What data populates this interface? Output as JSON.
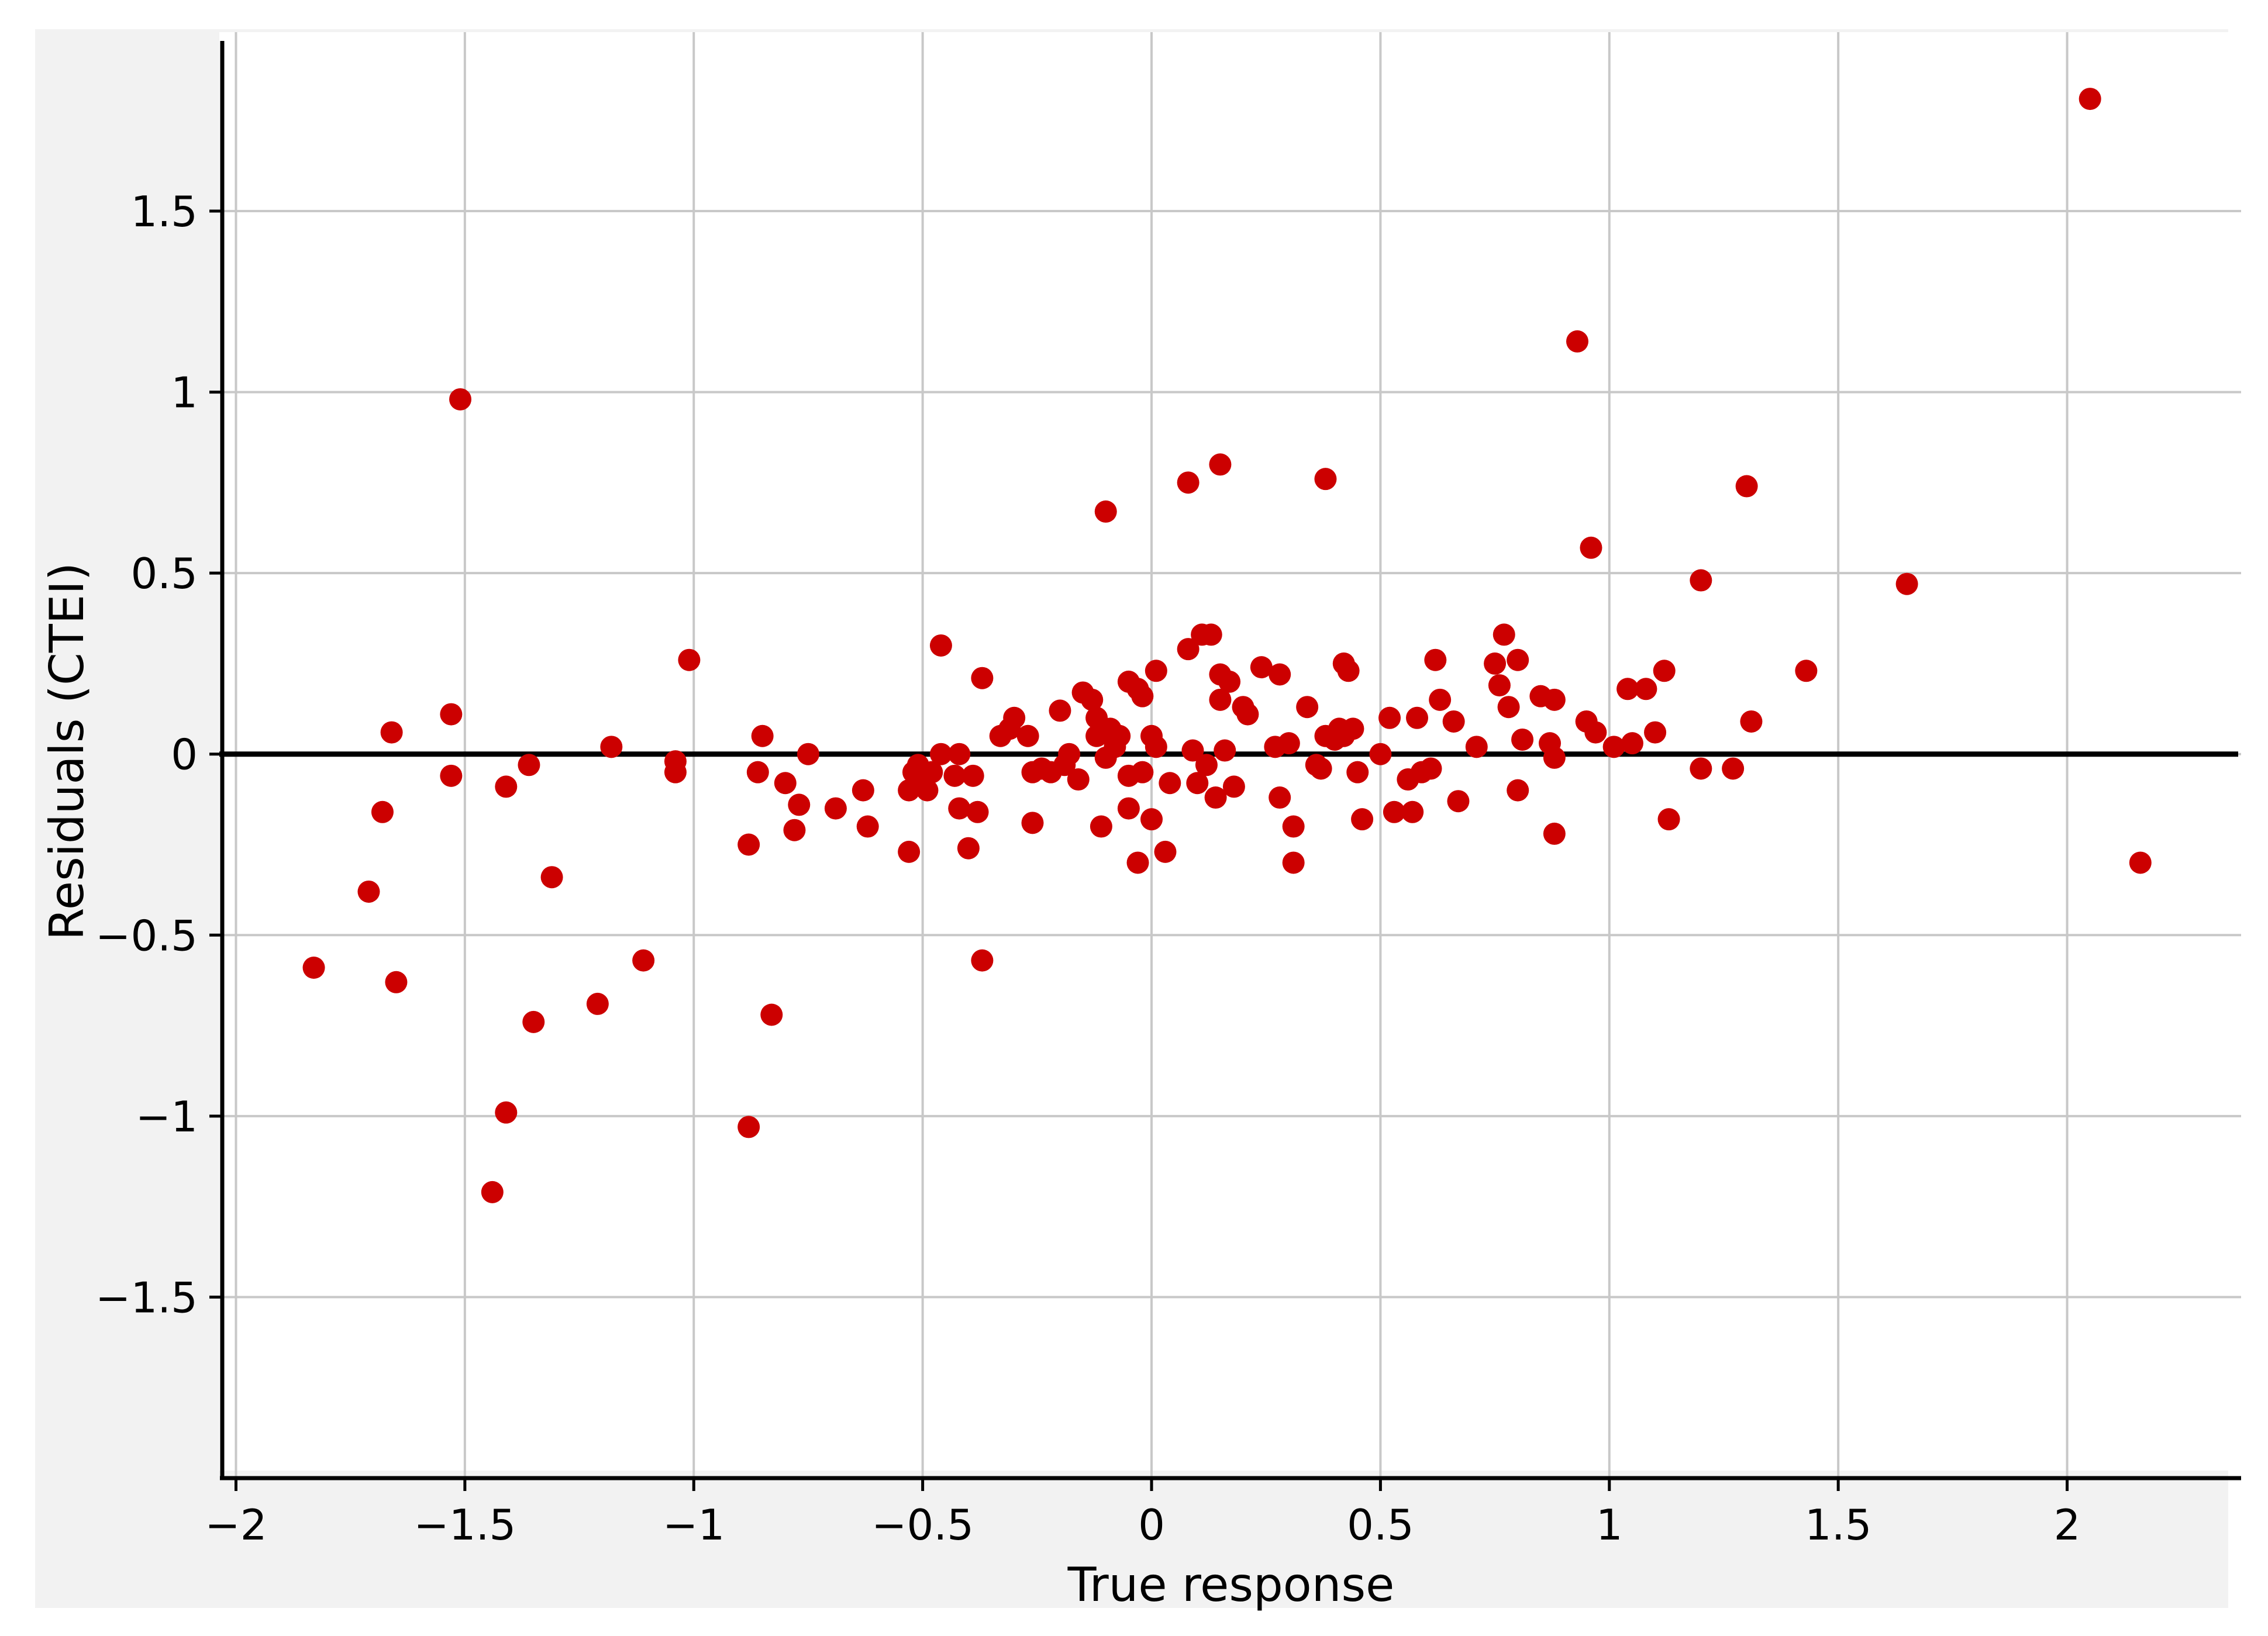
{
  "chart_data": {
    "type": "scatter",
    "xlabel": "True response",
    "ylabel": "Residuals (CTEI)",
    "xlim": [
      -2.03,
      2.38
    ],
    "ylim": [
      -2.0,
      1.97
    ],
    "x_ticks": [
      -2,
      -1.5,
      -1,
      -0.5,
      0,
      0.5,
      1,
      1.5,
      2
    ],
    "x_tick_labels": [
      "−2",
      "−1.5",
      "−1",
      "−0.5",
      "0",
      "0.5",
      "1",
      "1.5",
      "2"
    ],
    "y_ticks": [
      -1.5,
      -1,
      -0.5,
      0,
      0.5,
      1,
      1.5
    ],
    "y_tick_labels": [
      "−1.5",
      "−1",
      "−0.5",
      "0",
      "0.5",
      "1",
      "1.5"
    ],
    "grid": true,
    "reference_line_y": 0,
    "marker_color": "#cc0000",
    "grid_color": "#c8c8c8",
    "background_color": "#f2f2f2",
    "points": [
      [
        -1.83,
        -0.59
      ],
      [
        -1.71,
        -0.38
      ],
      [
        -1.68,
        -0.16
      ],
      [
        -1.66,
        0.06
      ],
      [
        -1.65,
        -0.63
      ],
      [
        -1.53,
        0.11
      ],
      [
        -1.53,
        -0.06
      ],
      [
        -1.51,
        0.98
      ],
      [
        -1.44,
        -1.21
      ],
      [
        -1.41,
        -0.99
      ],
      [
        -1.41,
        -0.09
      ],
      [
        -1.36,
        -0.03
      ],
      [
        -1.35,
        -0.74
      ],
      [
        -1.31,
        -0.34
      ],
      [
        -1.21,
        -0.69
      ],
      [
        -1.18,
        0.02
      ],
      [
        -1.11,
        -0.57
      ],
      [
        -1.04,
        -0.05
      ],
      [
        -1.04,
        -0.02
      ],
      [
        -1.01,
        0.26
      ],
      [
        -0.88,
        -1.03
      ],
      [
        -0.88,
        -0.25
      ],
      [
        -0.86,
        -0.05
      ],
      [
        -0.85,
        0.05
      ],
      [
        -0.83,
        -0.72
      ],
      [
        -0.8,
        -0.08
      ],
      [
        -0.78,
        -0.21
      ],
      [
        -0.77,
        -0.14
      ],
      [
        -0.75,
        0.0
      ],
      [
        -0.69,
        -0.15
      ],
      [
        -0.63,
        -0.1
      ],
      [
        -0.62,
        -0.2
      ],
      [
        -0.53,
        -0.27
      ],
      [
        -0.53,
        -0.1
      ],
      [
        -0.52,
        -0.05
      ],
      [
        -0.51,
        -0.03
      ],
      [
        -0.5,
        -0.08
      ],
      [
        -0.49,
        -0.1
      ],
      [
        -0.48,
        -0.05
      ],
      [
        -0.46,
        0.3
      ],
      [
        -0.46,
        0.0
      ],
      [
        -0.43,
        -0.06
      ],
      [
        -0.42,
        -0.15
      ],
      [
        -0.42,
        0.0
      ],
      [
        -0.4,
        -0.26
      ],
      [
        -0.39,
        -0.06
      ],
      [
        -0.38,
        -0.16
      ],
      [
        -0.37,
        -0.57
      ],
      [
        -0.37,
        0.21
      ],
      [
        -0.33,
        0.05
      ],
      [
        -0.31,
        0.07
      ],
      [
        -0.3,
        0.1
      ],
      [
        -0.27,
        0.05
      ],
      [
        -0.26,
        -0.19
      ],
      [
        -0.26,
        -0.05
      ],
      [
        -0.24,
        -0.04
      ],
      [
        -0.22,
        -0.05
      ],
      [
        -0.2,
        0.12
      ],
      [
        -0.19,
        -0.03
      ],
      [
        -0.18,
        0.0
      ],
      [
        -0.16,
        -0.07
      ],
      [
        -0.15,
        0.17
      ],
      [
        -0.13,
        0.15
      ],
      [
        -0.12,
        0.1
      ],
      [
        -0.12,
        0.05
      ],
      [
        -0.11,
        -0.2
      ],
      [
        -0.1,
        0.67
      ],
      [
        -0.1,
        -0.01
      ],
      [
        -0.09,
        0.07
      ],
      [
        -0.08,
        0.02
      ],
      [
        -0.07,
        0.05
      ],
      [
        -0.05,
        -0.15
      ],
      [
        -0.05,
        0.2
      ],
      [
        -0.05,
        -0.06
      ],
      [
        -0.03,
        0.18
      ],
      [
        -0.03,
        -0.3
      ],
      [
        -0.02,
        0.16
      ],
      [
        -0.02,
        -0.05
      ],
      [
        0.0,
        -0.18
      ],
      [
        0.0,
        0.05
      ],
      [
        0.01,
        0.02
      ],
      [
        0.01,
        0.23
      ],
      [
        0.03,
        -0.27
      ],
      [
        0.04,
        -0.08
      ],
      [
        0.08,
        0.75
      ],
      [
        0.08,
        0.29
      ],
      [
        0.09,
        0.01
      ],
      [
        0.1,
        -0.08
      ],
      [
        0.11,
        0.33
      ],
      [
        0.12,
        -0.03
      ],
      [
        0.13,
        0.33
      ],
      [
        0.14,
        -0.12
      ],
      [
        0.15,
        0.15
      ],
      [
        0.15,
        0.8
      ],
      [
        0.15,
        0.22
      ],
      [
        0.16,
        0.01
      ],
      [
        0.17,
        0.2
      ],
      [
        0.18,
        -0.09
      ],
      [
        0.2,
        0.13
      ],
      [
        0.21,
        0.11
      ],
      [
        0.24,
        0.24
      ],
      [
        0.27,
        0.02
      ],
      [
        0.28,
        -0.12
      ],
      [
        0.28,
        0.22
      ],
      [
        0.3,
        0.03
      ],
      [
        0.31,
        -0.3
      ],
      [
        0.31,
        -0.2
      ],
      [
        0.34,
        0.13
      ],
      [
        0.36,
        -0.03
      ],
      [
        0.37,
        -0.04
      ],
      [
        0.38,
        0.76
      ],
      [
        0.38,
        0.05
      ],
      [
        0.4,
        0.04
      ],
      [
        0.41,
        0.07
      ],
      [
        0.42,
        0.25
      ],
      [
        0.42,
        0.05
      ],
      [
        0.43,
        0.23
      ],
      [
        0.44,
        0.07
      ],
      [
        0.45,
        -0.05
      ],
      [
        0.46,
        -0.18
      ],
      [
        0.5,
        0.0
      ],
      [
        0.52,
        0.1
      ],
      [
        0.53,
        -0.16
      ],
      [
        0.56,
        -0.07
      ],
      [
        0.57,
        -0.16
      ],
      [
        0.58,
        0.1
      ],
      [
        0.59,
        -0.05
      ],
      [
        0.61,
        -0.04
      ],
      [
        0.62,
        0.26
      ],
      [
        0.63,
        0.15
      ],
      [
        0.66,
        0.09
      ],
      [
        0.67,
        -0.13
      ],
      [
        0.71,
        0.02
      ],
      [
        0.75,
        0.25
      ],
      [
        0.76,
        0.19
      ],
      [
        0.77,
        0.33
      ],
      [
        0.78,
        0.13
      ],
      [
        0.8,
        0.26
      ],
      [
        0.8,
        -0.1
      ],
      [
        0.81,
        0.04
      ],
      [
        0.85,
        0.16
      ],
      [
        0.87,
        0.03
      ],
      [
        0.88,
        0.15
      ],
      [
        0.88,
        -0.01
      ],
      [
        0.88,
        -0.22
      ],
      [
        0.93,
        1.14
      ],
      [
        0.95,
        0.09
      ],
      [
        0.96,
        0.57
      ],
      [
        0.97,
        0.06
      ],
      [
        1.01,
        0.02
      ],
      [
        1.04,
        0.18
      ],
      [
        1.05,
        0.03
      ],
      [
        1.08,
        0.18
      ],
      [
        1.1,
        0.06
      ],
      [
        1.12,
        0.23
      ],
      [
        1.13,
        -0.18
      ],
      [
        1.2,
        0.48
      ],
      [
        1.2,
        -0.04
      ],
      [
        1.27,
        -0.04
      ],
      [
        1.3,
        0.74
      ],
      [
        1.31,
        0.09
      ],
      [
        1.43,
        0.23
      ],
      [
        1.65,
        0.47
      ],
      [
        2.05,
        1.81
      ],
      [
        2.16,
        -0.3
      ]
    ]
  }
}
